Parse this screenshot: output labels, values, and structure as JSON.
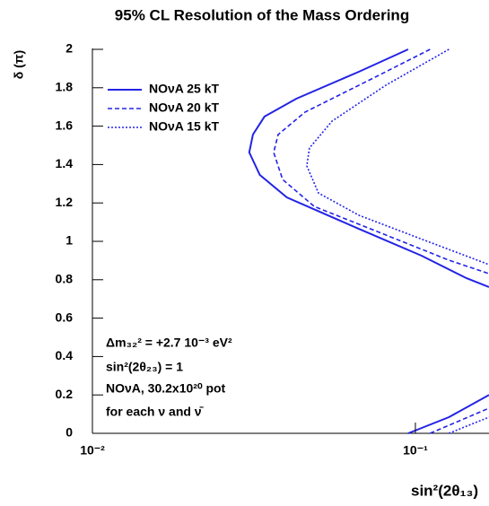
{
  "chart_data": {
    "type": "line",
    "title": "95% CL Resolution of the Mass Ordering",
    "x_label": "sin²(2θ₁₃)",
    "y_label": "δ (π)",
    "log_x": true,
    "xlim": [
      0.01,
      0.169
    ],
    "ylim": [
      0,
      2
    ],
    "xticks": [
      {
        "value": 0.01,
        "label": "10⁻²"
      },
      {
        "value": 0.1,
        "label": "10⁻¹"
      }
    ],
    "yticks": [
      0,
      0.2,
      0.4,
      0.6,
      0.8,
      1,
      1.2,
      1.4,
      1.6,
      1.8,
      2
    ],
    "legend": "top-left",
    "series": [
      {
        "name": "NOνA 25 kT",
        "color": "#2323e6",
        "dash": "solid",
        "x": [
          0.095,
          0.0668,
          0.0428,
          0.0341,
          0.0314,
          0.0306,
          0.033,
          0.04,
          0.0668,
          0.1045,
          0.144,
          0.169,
          null,
          0.095,
          0.127,
          0.169
        ],
        "values": [
          2.0,
          1.883,
          1.743,
          1.65,
          1.556,
          1.463,
          1.346,
          1.229,
          1.065,
          0.925,
          0.808,
          0.762,
          null,
          0,
          0.084,
          0.2
        ]
      },
      {
        "name": "NOνA 20 kT",
        "color": "#2323e6",
        "dash": "dashed",
        "x": [
          0.111,
          0.076,
          0.0455,
          0.0376,
          0.0364,
          0.0388,
          0.0486,
          0.081,
          0.127,
          0.169,
          null,
          0.111,
          0.169
        ],
        "values": [
          2.0,
          1.86,
          1.673,
          1.556,
          1.463,
          1.322,
          1.182,
          1.033,
          0.902,
          0.832,
          null,
          0,
          0.131
        ]
      },
      {
        "name": "NOνA 15 kT",
        "color": "#2323e6",
        "dash": "dotted",
        "x": [
          0.127,
          0.081,
          0.0552,
          0.047,
          0.0461,
          0.0501,
          0.0668,
          0.111,
          0.169,
          null,
          0.127,
          0.169
        ],
        "values": [
          2.0,
          1.813,
          1.626,
          1.486,
          1.393,
          1.252,
          1.136,
          0.995,
          0.879,
          null,
          0,
          0.084
        ]
      }
    ],
    "annotations": [
      "Δm₃₂² = +2.7 10⁻³ eV²",
      "sin²(2θ₂₃) = 1",
      "NOνA, 30.2x10²⁰ pot",
      "for each ν and ν̄"
    ]
  }
}
